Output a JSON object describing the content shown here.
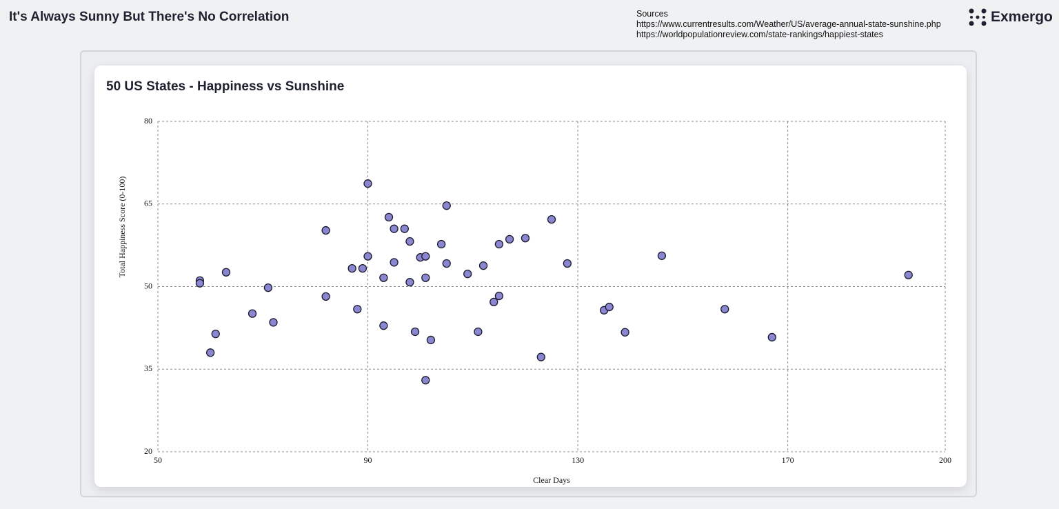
{
  "header": {
    "title": "It's Always Sunny But There's No Correlation",
    "sources_label": "Sources",
    "sources": [
      "https://www.currentresults.com/Weather/US/average-annual-state-sunshine.php",
      "https://worldpopulationreview.com/state-rankings/happiest-states"
    ],
    "logo": "Exmergo"
  },
  "chart_data": {
    "type": "scatter",
    "title": "50 US States - Happiness vs Sunshine",
    "x_label": "Clear Days",
    "y_label": "Total Happiness Score (0-100)",
    "color": "#8a87d0",
    "x": [
      58,
      58,
      63,
      60,
      61,
      68,
      71,
      72,
      82,
      82,
      87,
      88,
      89,
      90,
      90,
      93,
      93,
      94,
      95,
      95,
      97,
      98,
      98,
      99,
      100,
      101,
      101,
      101,
      102,
      104,
      105,
      105,
      109,
      111,
      112,
      114,
      115,
      115,
      117,
      120,
      123,
      125,
      128,
      135,
      136,
      139,
      146,
      158,
      167,
      193
    ],
    "values": [
      51.1,
      50.6,
      52.6,
      38.0,
      41.4,
      45.1,
      49.8,
      43.5,
      60.2,
      48.2,
      53.3,
      45.9,
      53.3,
      68.7,
      55.5,
      51.6,
      42.9,
      62.6,
      60.5,
      54.4,
      60.5,
      58.2,
      50.8,
      41.8,
      55.3,
      55.5,
      51.6,
      33.0,
      40.3,
      57.7,
      64.7,
      54.2,
      52.3,
      41.8,
      53.8,
      47.2,
      57.7,
      48.3,
      58.6,
      58.8,
      37.2,
      62.2,
      54.2,
      45.7,
      46.3,
      41.7,
      55.6,
      45.9,
      40.8,
      52.1
    ],
    "xlim": [
      50,
      200
    ],
    "xticks": [
      50,
      90,
      130,
      170,
      200
    ],
    "ylim": [
      20,
      80
    ],
    "yticks": [
      20,
      35,
      50,
      65,
      80
    ],
    "grid": true
  }
}
